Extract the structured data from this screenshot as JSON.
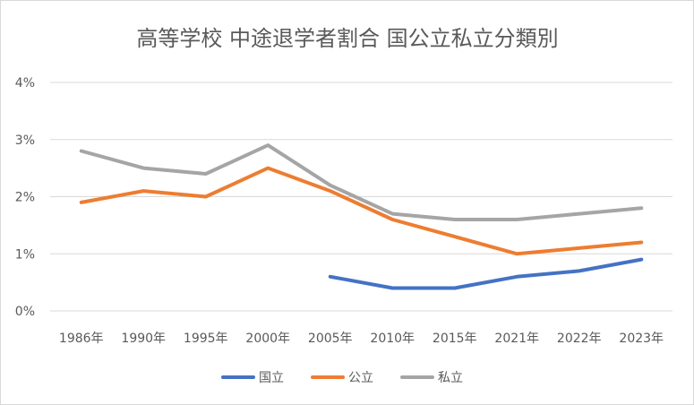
{
  "chart_data": {
    "type": "line",
    "title": "高等学校 中途退学者割合 国公立私立分類別",
    "categories": [
      "1986年",
      "1990年",
      "1995年",
      "2000年",
      "2005年",
      "2010年",
      "2015年",
      "2021年",
      "2022年",
      "2023年"
    ],
    "series": [
      {
        "name": "国立",
        "color": "#4472c4",
        "values": [
          null,
          null,
          null,
          null,
          0.6,
          0.4,
          0.4,
          0.6,
          0.7,
          0.9
        ]
      },
      {
        "name": "公立",
        "color": "#ed7d31",
        "values": [
          1.9,
          2.1,
          2.0,
          2.5,
          2.1,
          1.6,
          1.3,
          1.0,
          1.1,
          1.2
        ]
      },
      {
        "name": "私立",
        "color": "#a5a5a5",
        "values": [
          2.8,
          2.5,
          2.4,
          2.9,
          2.2,
          1.7,
          1.6,
          1.6,
          1.7,
          1.8
        ]
      }
    ],
    "ylim": [
      0,
      4
    ],
    "yticks": [
      0,
      1,
      2,
      3,
      4
    ],
    "ytick_labels": [
      "0%",
      "1%",
      "2%",
      "3%",
      "4%"
    ],
    "grid": true,
    "legend_position": "bottom"
  }
}
